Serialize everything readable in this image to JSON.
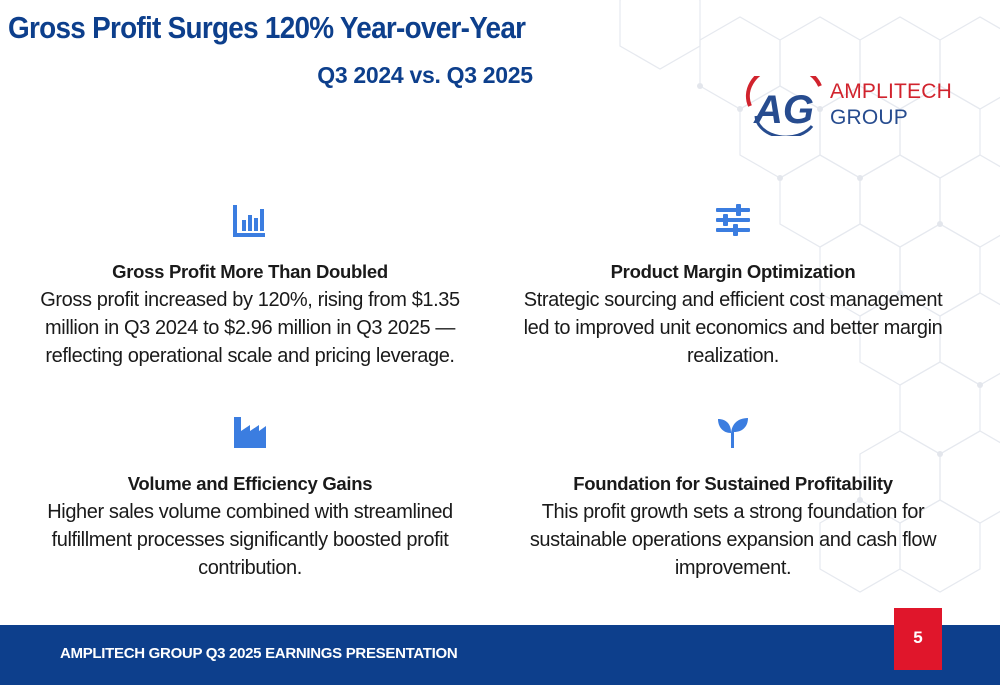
{
  "slide": {
    "title": "Gross Profit Surges 120% Year-over-Year",
    "subtitle": "Q3 2024 vs. Q3 2025"
  },
  "logo": {
    "line1": "AMPLITECH",
    "line2": "GROUP",
    "monogram": "AG",
    "colors": {
      "red": "#d1232d",
      "blue": "#274c8f"
    }
  },
  "cards": [
    {
      "icon": "bar-chart-icon",
      "heading": "Gross Profit More Than Doubled",
      "body": "Gross profit increased by 120%, rising from $1.35 million in Q3 2024 to $2.96 million in Q3 2025 — reflecting operational scale and pricing leverage."
    },
    {
      "icon": "sliders-icon",
      "heading": "Product Margin Optimization",
      "body": "Strategic sourcing and efficient cost management led to improved unit economics and better margin realization."
    },
    {
      "icon": "factory-icon",
      "heading": "Volume and Efficiency Gains",
      "body": "Higher sales volume combined with streamlined fulfillment processes significantly boosted profit contribution."
    },
    {
      "icon": "seedling-icon",
      "heading": "Foundation for Sustained Profitability",
      "body": "This profit growth sets a strong foundation for sustainable operations expansion and cash flow improvement."
    }
  ],
  "footer": {
    "text": "AMPLITECH GROUP Q3 2025 EARNINGS PRESENTATION",
    "page_number": "5"
  },
  "colors": {
    "title": "#0d3f8c",
    "icon": "#3b7de0",
    "footer_bg": "#0d3f8c",
    "badge_bg": "#e0162b"
  }
}
